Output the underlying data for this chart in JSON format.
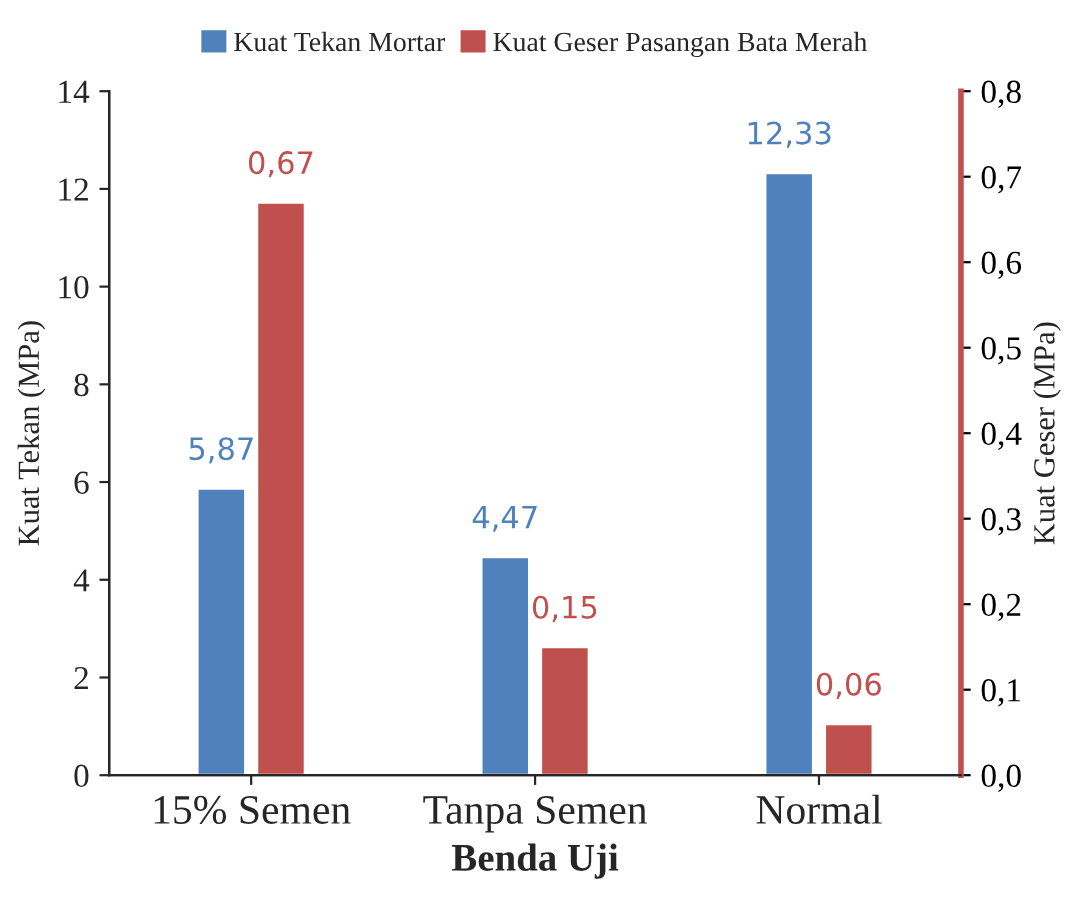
{
  "chart_data": {
    "type": "bar",
    "xlabel": "Benda Uji",
    "ylabel": "Kuat Tekan (MPa)",
    "y2label": "Kuat Geser (MPa)",
    "categories": [
      "15% Semen",
      "Tanpa Semen",
      "Normal"
    ],
    "series": [
      {
        "name": "Kuat Tekan Mortar",
        "color": "#4f81bd",
        "values": [
          5.87,
          4.47,
          12.33
        ],
        "value_labels": [
          "5,87",
          "4,47",
          "12,33"
        ]
      },
      {
        "name": "Kuat Geser Pasangan Bata Merah",
        "color": "#c0504d",
        "axis": "y2",
        "values": [
          0.67,
          0.15,
          0.06
        ],
        "value_labels": [
          "0,67",
          "0,15",
          "0,06"
        ]
      }
    ],
    "ylim": [
      0,
      14
    ],
    "yticks": [
      0,
      2,
      4,
      6,
      8,
      10,
      12,
      14
    ],
    "y2lim": [
      0,
      0.8
    ],
    "y2ticks": [
      {
        "value": 0,
        "label": "0,0"
      },
      {
        "value": 0.1,
        "label": "0,1"
      },
      {
        "value": 0.2,
        "label": "0,2"
      },
      {
        "value": 0.3,
        "label": "0,3"
      },
      {
        "value": 0.4,
        "label": "0,4"
      },
      {
        "value": 0.5,
        "label": "0,5"
      },
      {
        "value": 0.6,
        "label": "0,6"
      },
      {
        "value": 0.7,
        "label": "0,7"
      },
      {
        "value": 0.8,
        "label": "0,8"
      }
    ],
    "grid": false,
    "legend": "top"
  }
}
